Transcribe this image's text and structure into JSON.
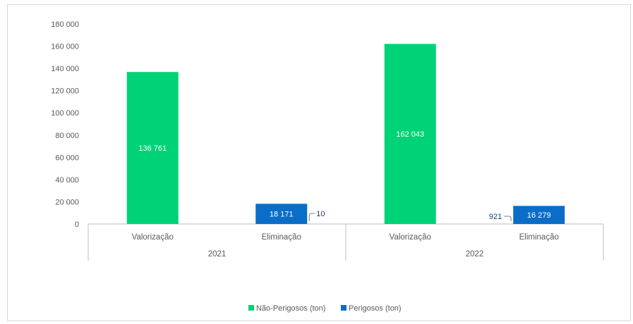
{
  "chart_data": {
    "type": "bar",
    "title": "",
    "xlabel": "",
    "ylabel": "",
    "ylim": [
      0,
      180000
    ],
    "yticks": [
      "0",
      "20 000",
      "40 000",
      "60 000",
      "80 000",
      "100 000",
      "120 000",
      "140 000",
      "160 000",
      "180 000"
    ],
    "groups": [
      "2021",
      "2022"
    ],
    "categories": [
      "Valorização",
      "Eliminação",
      "Valorização",
      "Eliminação"
    ],
    "series": [
      {
        "name": "Não-Perigosos (ton)",
        "color": "#00d278",
        "values": [
          136761,
          18171,
          162043,
          16279
        ],
        "labels": [
          "136 761",
          "18 171",
          "162 043",
          "16 279"
        ]
      },
      {
        "name": "Perigosos (ton)",
        "color": "#0a6ec8",
        "values": [
          0,
          10,
          0,
          921
        ],
        "labels": [
          "",
          "10",
          "",
          "921"
        ]
      }
    ],
    "bar_colors": [
      "#00d278",
      "#0a6ec8",
      "#00d278",
      "#0a6ec8"
    ],
    "legend_position": "bottom",
    "grid": false
  }
}
